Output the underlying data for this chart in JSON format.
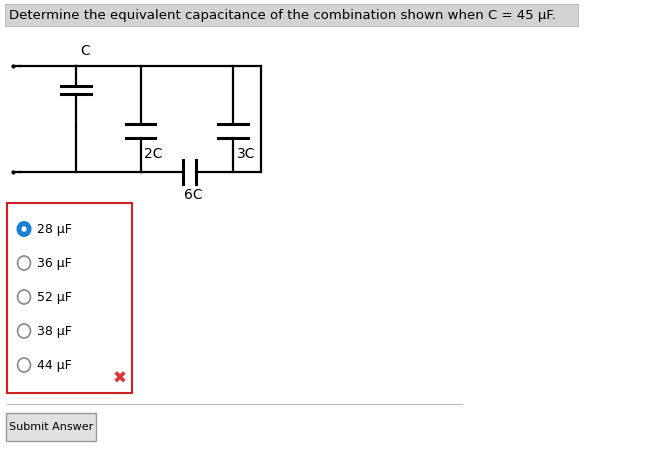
{
  "title": "Determine the equivalent capacitance of the combination shown when C = 45 μF.",
  "title_fontsize": 9.5,
  "title_bg": "#d3d3d3",
  "circuit_lw": 1.6,
  "cap_plate_lw": 2.2,
  "choices": [
    "28 μF",
    "36 μF",
    "52 μF",
    "38 μF",
    "44 μF"
  ],
  "selected_index": 0,
  "selected_color": "#1a7fd4",
  "radio_border": "#888888",
  "box_border": "#cc2222",
  "x_mark_color": "#dd3333",
  "submit_text": "Submit Answer",
  "bg_color": "#ffffff",
  "text_color": "#000000",
  "label_fontsize": 9,
  "circuit_label_fontsize": 10
}
